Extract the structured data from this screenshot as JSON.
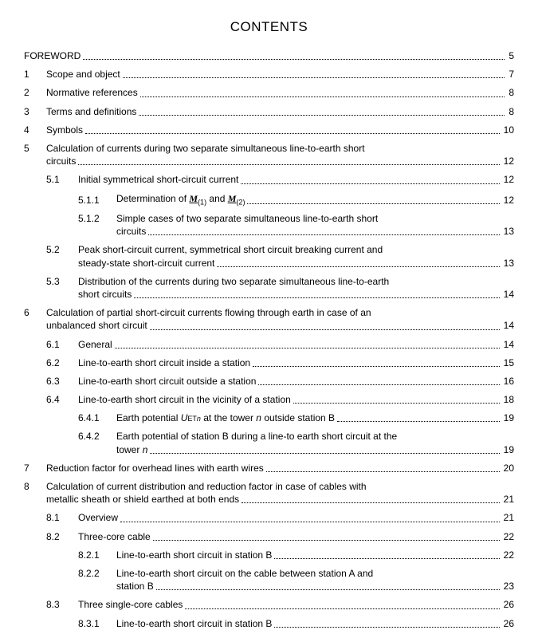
{
  "title": "CONTENTS",
  "text_color": "#000000",
  "background_color": "#ffffff",
  "font_family": "Arial, Helvetica, sans-serif",
  "title_fontsize": 17,
  "body_fontsize": 12,
  "entries": {
    "foreword": {
      "label": "FOREWORD",
      "page": "5"
    },
    "s1": {
      "num": "1",
      "label": "Scope and object",
      "page": "7"
    },
    "s2": {
      "num": "2",
      "label": "Normative references ",
      "page": "8"
    },
    "s3": {
      "num": "3",
      "label": "Terms and definitions ",
      "page": "8"
    },
    "s4": {
      "num": "4",
      "label": "Symbols ",
      "page": "10"
    },
    "s5": {
      "num": "5",
      "label_a": "Calculation of currents during two separate simultaneous line-to-earth short",
      "label_b": "circuits ",
      "page": "12"
    },
    "s5_1": {
      "num": "5.1",
      "label": "Initial symmetrical short-circuit current ",
      "page": "12"
    },
    "s5_1_1": {
      "num": "5.1.1",
      "label_pre": "Determination of ",
      "sym1": "M",
      "sub1": "(1)",
      "mid": " and ",
      "sym2": "M",
      "sub2": "(2)",
      "page": "12"
    },
    "s5_1_2": {
      "num": "5.1.2",
      "label_a": "Simple cases of two separate simultaneous line-to-earth short",
      "label_b": "circuits",
      "page": "13"
    },
    "s5_2": {
      "num": "5.2",
      "label_a": "Peak short-circuit current, symmetrical short circuit breaking current and",
      "label_b": "steady-state short-circuit current ",
      "page": "13"
    },
    "s5_3": {
      "num": "5.3",
      "label_a": "Distribution of the currents during two separate simultaneous line-to-earth",
      "label_b": "short circuits",
      "page": "14"
    },
    "s6": {
      "num": "6",
      "label_a": "Calculation of partial short-circuit currents flowing through earth in case of an",
      "label_b": "unbalanced short circuit",
      "page": "14"
    },
    "s6_1": {
      "num": "6.1",
      "label": "General ",
      "page": "14"
    },
    "s6_2": {
      "num": "6.2",
      "label": "Line-to-earth short circuit inside a station ",
      "page": "15"
    },
    "s6_3": {
      "num": "6.3",
      "label": "Line-to-earth short circuit outside a station ",
      "page": "16"
    },
    "s6_4": {
      "num": "6.4",
      "label": "Line-to-earth short circuit in the vicinity of a station ",
      "page": "18"
    },
    "s6_4_1": {
      "num": "6.4.1",
      "label_pre": "Earth potential ",
      "sym": "U",
      "sub": "ET",
      "subit": "n",
      "label_mid": " at the tower ",
      "it": "n",
      "label_post": " outside station B ",
      "page": "19"
    },
    "s6_4_2": {
      "num": "6.4.2",
      "label_a": "Earth potential of station B during a line-to earth short circuit at the",
      "label_b_pre": "tower ",
      "it": "n",
      "label_b_post": " ",
      "page": "19"
    },
    "s7": {
      "num": "7",
      "label": "Reduction factor for overhead lines with earth wires ",
      "page": "20"
    },
    "s8": {
      "num": "8",
      "label_a": "Calculation of current distribution and reduction factor in case of cables with",
      "label_b": "metallic sheath or shield earthed at both ends ",
      "page": "21"
    },
    "s8_1": {
      "num": "8.1",
      "label": "Overview ",
      "page": "21"
    },
    "s8_2": {
      "num": "8.2",
      "label": "Three-core cable ",
      "page": "22"
    },
    "s8_2_1": {
      "num": "8.2.1",
      "label": "Line-to-earth short circuit in station B ",
      "page": "22"
    },
    "s8_2_2": {
      "num": "8.2.2",
      "label_a": "Line-to-earth short circuit on the cable between station A and",
      "label_b": "station B ",
      "page": "23"
    },
    "s8_3": {
      "num": "8.3",
      "label": "Three single-core cables ",
      "page": "26"
    },
    "s8_3_1": {
      "num": "8.3.1",
      "label": "Line-to-earth short circuit in station B ",
      "page": "26"
    }
  }
}
